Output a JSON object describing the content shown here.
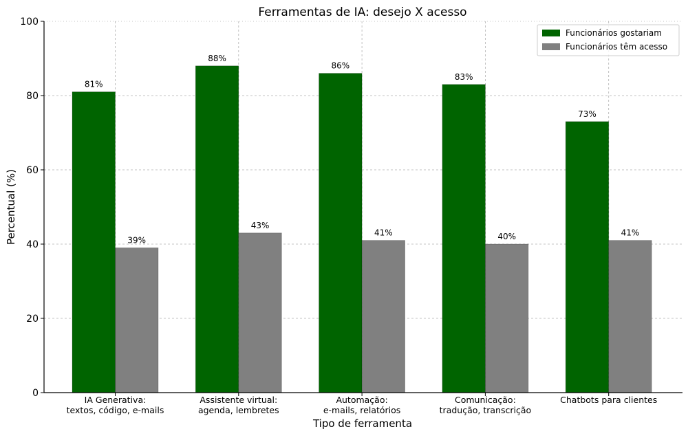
{
  "colors": {
    "series_0": "#006400",
    "series_1": "#808080",
    "grid": "#b0b0b0",
    "axis": "#000000",
    "legend_border": "#cccccc"
  },
  "chart_data": {
    "type": "bar",
    "title": "Ferramentas de IA: desejo X acesso",
    "xlabel": "Tipo de ferramenta",
    "ylabel": "Percentual (%)",
    "ylim": [
      0,
      100
    ],
    "yticks": [
      "0",
      "20",
      "40",
      "60",
      "80",
      "100"
    ],
    "categories": [
      [
        "IA Generativa:",
        "textos, código, e-mails"
      ],
      [
        "Assistente virtual:",
        "agenda, lembretes"
      ],
      [
        "Automação:",
        "e-mails, relatórios"
      ],
      [
        "Comunicação:",
        "tradução, transcrição"
      ],
      [
        "Chatbots para clientes"
      ]
    ],
    "series": [
      {
        "name": "Funcionários gostariam",
        "values": [
          81,
          88,
          86,
          83,
          73
        ],
        "labels": [
          "81%",
          "88%",
          "86%",
          "83%",
          "73%"
        ]
      },
      {
        "name": "Funcionários têm acesso",
        "values": [
          39,
          43,
          41,
          40,
          41
        ],
        "labels": [
          "39%",
          "43%",
          "41%",
          "40%",
          "41%"
        ]
      }
    ],
    "grid": true,
    "legend_position": "top-right"
  }
}
